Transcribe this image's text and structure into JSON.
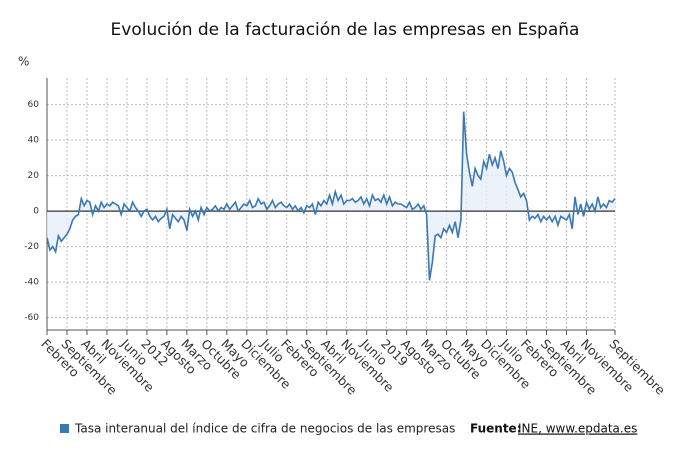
{
  "chart_data": {
    "type": "line",
    "title": "Evolución de la facturación de las empresas en España",
    "y_label": "%",
    "categories": [
      "Febrero",
      null,
      null,
      null,
      null,
      null,
      null,
      "Septiembre",
      null,
      null,
      null,
      null,
      null,
      null,
      "Abril",
      null,
      null,
      null,
      null,
      null,
      null,
      "Noviembre",
      null,
      null,
      null,
      null,
      null,
      null,
      "Junio",
      null,
      null,
      null,
      null,
      null,
      null,
      "2012",
      null,
      null,
      null,
      null,
      null,
      null,
      "Agosto",
      null,
      null,
      null,
      null,
      null,
      null,
      "Marzo",
      null,
      null,
      null,
      null,
      null,
      null,
      "Octubre",
      null,
      null,
      null,
      null,
      null,
      null,
      "Mayo",
      null,
      null,
      null,
      null,
      null,
      null,
      "Diciembre",
      null,
      null,
      null,
      null,
      null,
      null,
      "Julio",
      null,
      null,
      null,
      null,
      null,
      null,
      "Febrero",
      null,
      null,
      null,
      null,
      null,
      null,
      "Septiembre",
      null,
      null,
      null,
      null,
      null,
      null,
      "Abril",
      null,
      null,
      null,
      null,
      null,
      null,
      "Noviembre",
      null,
      null,
      null,
      null,
      null,
      null,
      "Junio",
      null,
      null,
      null,
      null,
      null,
      null,
      "2019",
      null,
      null,
      null,
      null,
      null,
      null,
      "Agosto",
      null,
      null,
      null,
      null,
      null,
      null,
      "Marzo",
      null,
      null,
      null,
      null,
      null,
      null,
      "Octubre",
      null,
      null,
      null,
      null,
      null,
      null,
      "Mayo",
      null,
      null,
      null,
      null,
      null,
      null,
      "Diciembre",
      null,
      null,
      null,
      null,
      null,
      null,
      "Julio",
      null,
      null,
      null,
      null,
      null,
      null,
      "Febrero",
      null,
      null,
      null,
      null,
      null,
      null,
      "Septiembre",
      null,
      null,
      null,
      null,
      null,
      null,
      "Abril",
      null,
      null,
      null,
      null,
      null,
      null,
      "Noviembre",
      null,
      null,
      null,
      null,
      null,
      null,
      null,
      null,
      null,
      "Septiembre"
    ],
    "series": [
      {
        "name": "Tasa interanual del índice de cifra de negocios de las empresas",
        "color": "#3a78b5",
        "values": [
          -15,
          -22,
          -20,
          -23,
          -14,
          -17,
          -15,
          -13,
          -10,
          -5,
          -3,
          -2,
          7,
          3,
          6,
          5,
          -2,
          3,
          0,
          5,
          2,
          4,
          3,
          5,
          4,
          3,
          -2,
          4,
          2,
          0,
          5,
          2,
          0,
          -3,
          0,
          1,
          -3,
          -5,
          -3,
          -6,
          -4,
          -3,
          1,
          -10,
          -2,
          -4,
          -6,
          -3,
          -5,
          -11,
          1,
          -3,
          0,
          -5,
          2,
          -2,
          2,
          0,
          1,
          3,
          0,
          2,
          1,
          4,
          1,
          3,
          5,
          0,
          2,
          4,
          3,
          6,
          2,
          3,
          7,
          4,
          5,
          1,
          3,
          6,
          2,
          4,
          5,
          3,
          2,
          4,
          1,
          3,
          0,
          2,
          -1,
          3,
          2,
          4,
          -2,
          5,
          3,
          6,
          4,
          9,
          4,
          11,
          6,
          9,
          4,
          6,
          6,
          7,
          5,
          6,
          8,
          4,
          7,
          3,
          9,
          6,
          7,
          5,
          9,
          4,
          8,
          3,
          5,
          4,
          4,
          3,
          2,
          5,
          1,
          2,
          4,
          1,
          3,
          -2,
          -39,
          -29,
          -14,
          -13,
          -15,
          -10,
          -12,
          -8,
          -12,
          -6,
          -15,
          -5,
          56,
          32,
          22,
          14,
          24,
          20,
          18,
          28,
          24,
          32,
          26,
          30,
          24,
          34,
          28,
          20,
          24,
          22,
          16,
          12,
          8,
          10,
          6,
          -5,
          -3,
          -4,
          -2,
          -6,
          -3,
          -5,
          -3,
          -6,
          -3,
          -8,
          -3,
          -4,
          -5,
          -2,
          -10,
          8,
          -2,
          4,
          -3,
          5,
          1,
          4,
          0,
          8,
          2,
          4,
          2,
          6,
          5,
          7
        ]
      }
    ],
    "ylim": [
      -67,
      75
    ],
    "yticks": [
      -60,
      -40,
      -20,
      0,
      20,
      40,
      60
    ],
    "grid": true,
    "source_label": "Fuente:",
    "source": "INE, www.epdata.es"
  }
}
